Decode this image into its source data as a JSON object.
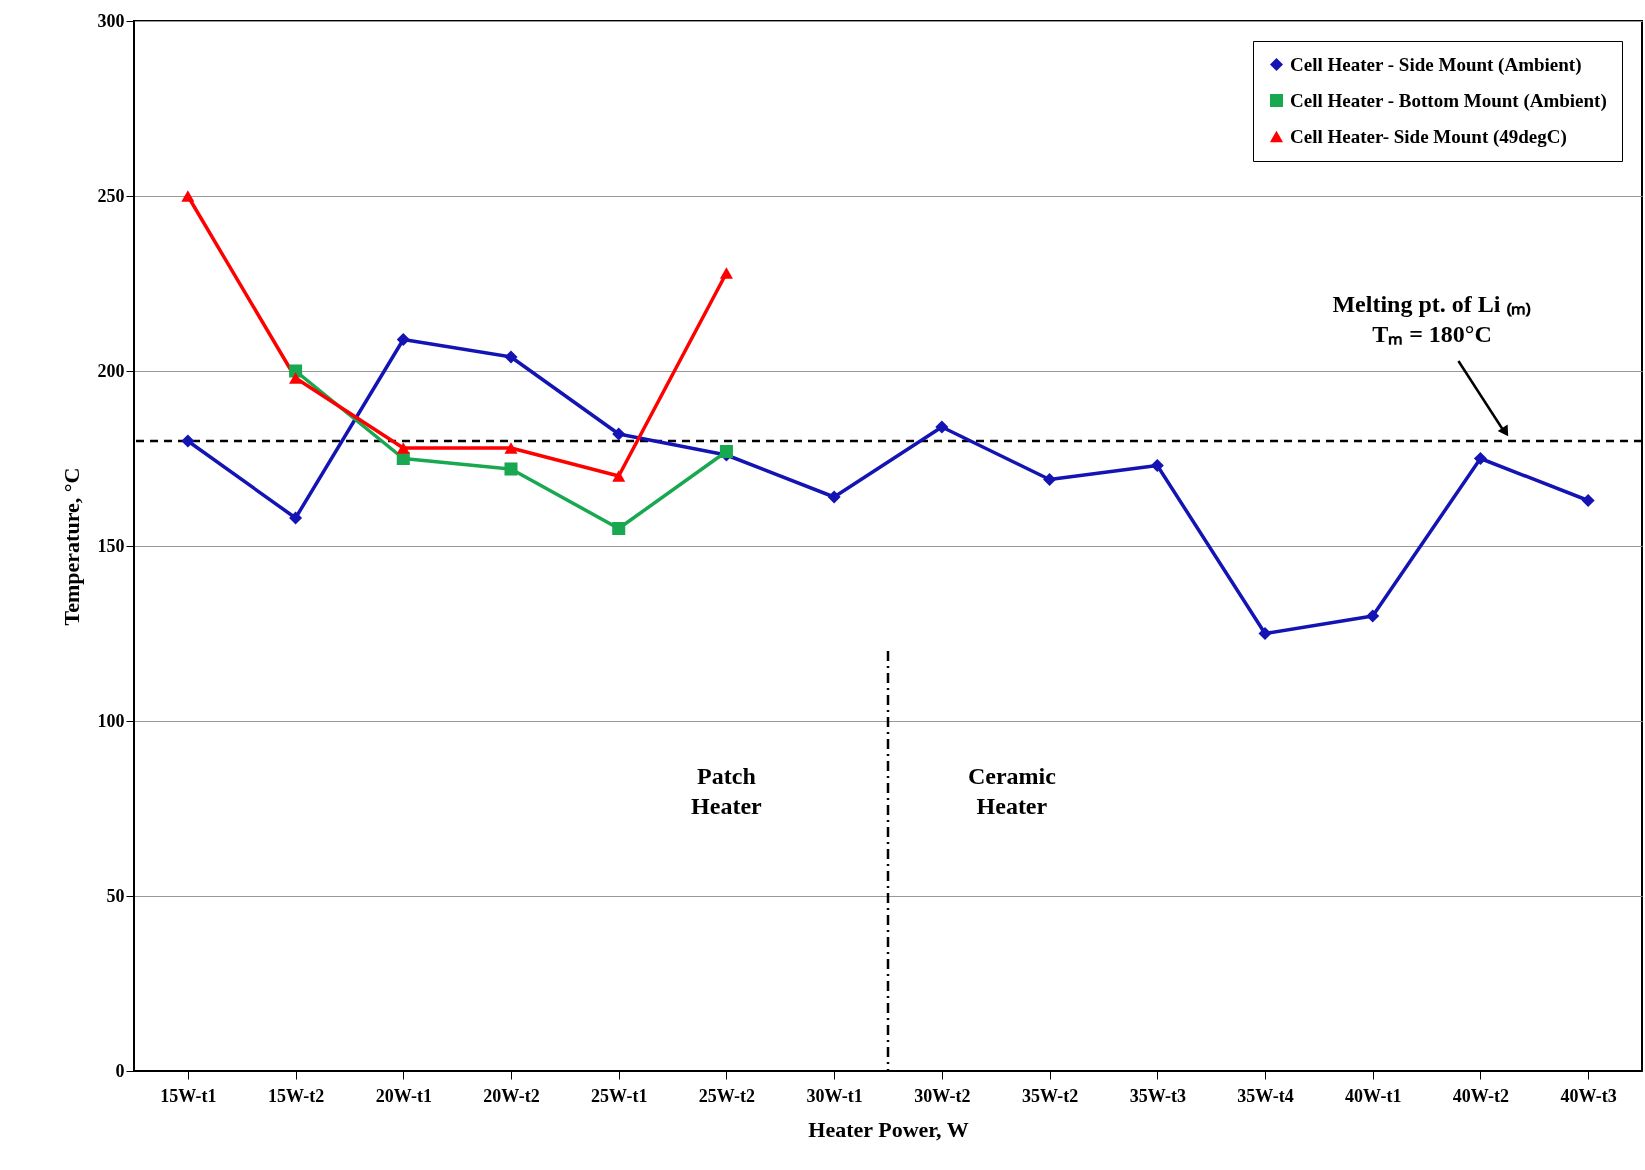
{
  "chart_data": {
    "type": "line",
    "xlabel": "Heater Power, W",
    "ylabel": "Temperature, °C",
    "categories": [
      "15W-t1",
      "15W-t2",
      "20W-t1",
      "20W-t2",
      "25W-t1",
      "25W-t2",
      "30W-t1",
      "30W-t2",
      "35W-t2",
      "35W-t3",
      "35W-t4",
      "40W-t1",
      "40W-t2",
      "40W-t3"
    ],
    "series": [
      {
        "name": "Cell Heater - Side Mount (Ambient)",
        "color": "#1414b4",
        "marker": "diamond",
        "values": [
          180,
          158,
          209,
          204,
          182,
          176,
          164,
          184,
          169,
          173,
          125,
          130,
          175,
          163
        ]
      },
      {
        "name": "Cell Heater - Bottom Mount (Ambient)",
        "color": "#18a850",
        "marker": "square",
        "values": [
          null,
          200,
          175,
          172,
          155,
          177,
          null,
          null,
          null,
          null,
          null,
          null,
          null,
          null
        ]
      },
      {
        "name": "Cell Heater- Side Mount (49degC)",
        "color": "#ff0000",
        "marker": "triangle",
        "values": [
          250,
          198,
          178,
          178,
          170,
          228,
          null,
          null,
          null,
          null,
          null,
          null,
          null,
          null
        ]
      }
    ],
    "ylim": [
      0,
      300
    ],
    "yticks": [
      0,
      50,
      100,
      150,
      200,
      250,
      300
    ],
    "grid": "y",
    "legend": "top right",
    "ref_lines": [
      {
        "axis": "y",
        "value": 180,
        "color": "#000000",
        "line_style": "dashed"
      },
      {
        "axis": "x",
        "value": "30W-t2",
        "color": "#000000",
        "line_style": "dashdot"
      }
    ],
    "annotations": [
      "Melting pt. of Li ₍ₘ₎\nTₘ = 180°C",
      "Patch\nHeater",
      "Ceramic\nHeater"
    ]
  }
}
